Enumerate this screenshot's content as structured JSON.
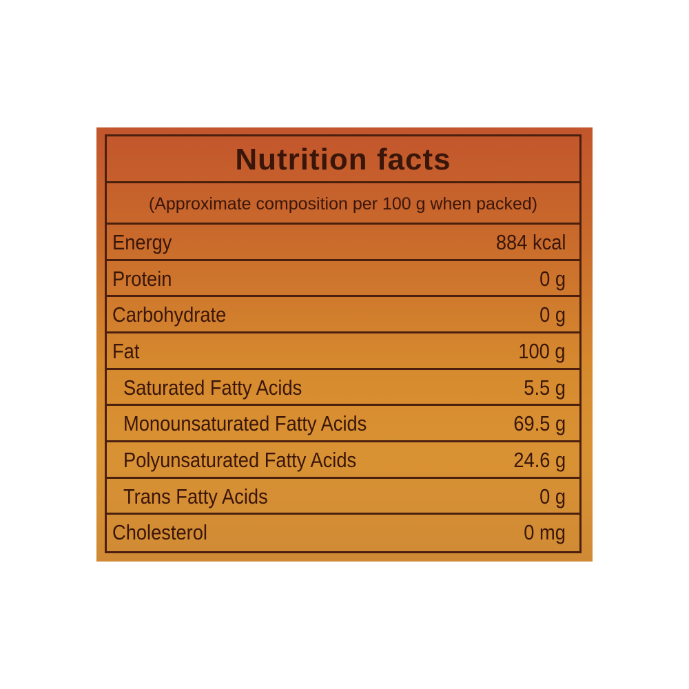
{
  "header": {
    "title": "Nutrition facts",
    "subtitle": "(Approximate composition per 100 g when packed)"
  },
  "table": {
    "rows": [
      [
        "Energy",
        "884 kcal"
      ],
      [
        "Protein",
        "0 g"
      ],
      [
        "Carbohydrate",
        "0 g"
      ],
      [
        "Fat",
        "100 g"
      ],
      [
        "Saturated Fatty Acids",
        "5.5 g"
      ],
      [
        "Monounsaturated Fatty Acids",
        "69.5 g"
      ],
      [
        "Polyunsaturated Fatty Acids",
        "24.6 g"
      ],
      [
        "Trans Fatty Acids",
        "0 g"
      ],
      [
        "Cholesterol",
        "0 mg"
      ]
    ]
  }
}
